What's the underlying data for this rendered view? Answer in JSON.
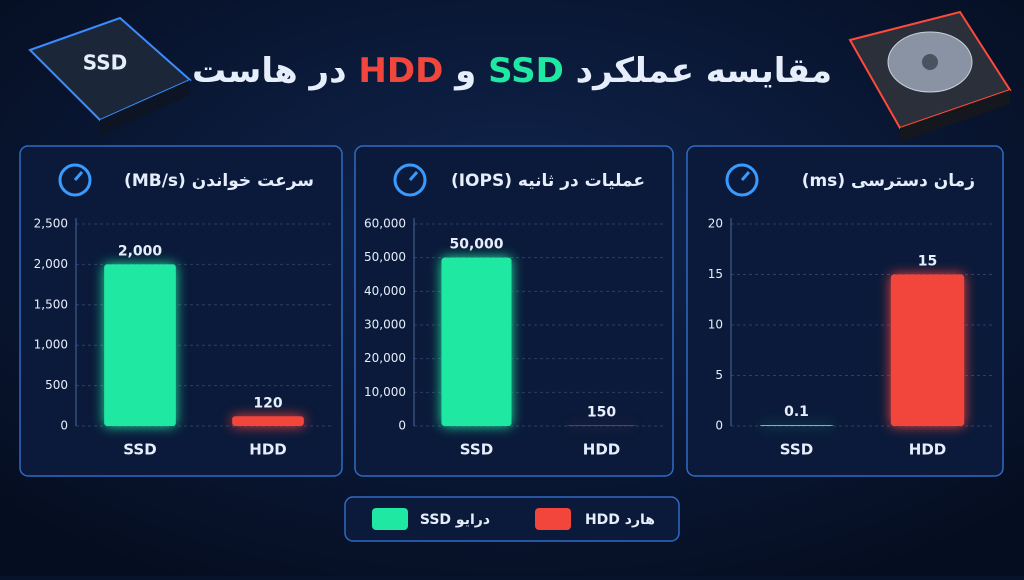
{
  "header": {
    "title_parts": [
      "مقایسه عملکرد",
      "SSD",
      "و",
      "HDD",
      "در هاست"
    ],
    "ssd_chip": "SSD"
  },
  "chart_data": [
    {
      "type": "bar",
      "title": "سرعت خواندن (MB/s)",
      "categories": [
        "SSD",
        "HDD"
      ],
      "values": [
        2000,
        120
      ],
      "value_labels": [
        "2,000",
        "120"
      ],
      "colors": [
        "#1fe8a2",
        "#f2453b"
      ],
      "ylim": [
        0,
        2500
      ],
      "yticks": [
        0,
        500,
        {
          "value": 1000,
          "label": "1,000"
        },
        {
          "value": 1500,
          "label": "1,500"
        },
        {
          "value": 2000,
          "label": "2,000"
        },
        {
          "value": 2500,
          "label": "2,500"
        }
      ],
      "grid": true
    },
    {
      "type": "bar",
      "title": "عملیات در ثانیه (IOPS)",
      "categories": [
        "SSD",
        "HDD"
      ],
      "values": [
        50000,
        150
      ],
      "value_labels": [
        "50,000",
        "150"
      ],
      "colors": [
        "#1fe8a2",
        "#f2453b"
      ],
      "ylim": [
        0,
        60000
      ],
      "yticks": [
        0,
        {
          "value": 10000,
          "label": "10,000"
        },
        {
          "value": 20000,
          "label": "20,000"
        },
        {
          "value": 30000,
          "label": "30,000"
        },
        {
          "value": 40000,
          "label": "40,000"
        },
        {
          "value": 50000,
          "label": "50,000"
        },
        {
          "value": 60000,
          "label": "60,000"
        }
      ],
      "grid": true
    },
    {
      "type": "bar",
      "title": "زمان دسترسی (ms)",
      "categories": [
        "SSD",
        "HDD"
      ],
      "values": [
        0.1,
        15
      ],
      "colors": [
        "#1fe8a2",
        "#f2453b"
      ],
      "ylim": [
        0,
        20
      ],
      "yticks": [
        0,
        5,
        10,
        15,
        20
      ],
      "grid": true
    }
  ],
  "legend": [
    {
      "name": "درایو SSD",
      "color": "#1fe8a2"
    },
    {
      "name": "هارد HDD",
      "color": "#f2453b"
    }
  ]
}
